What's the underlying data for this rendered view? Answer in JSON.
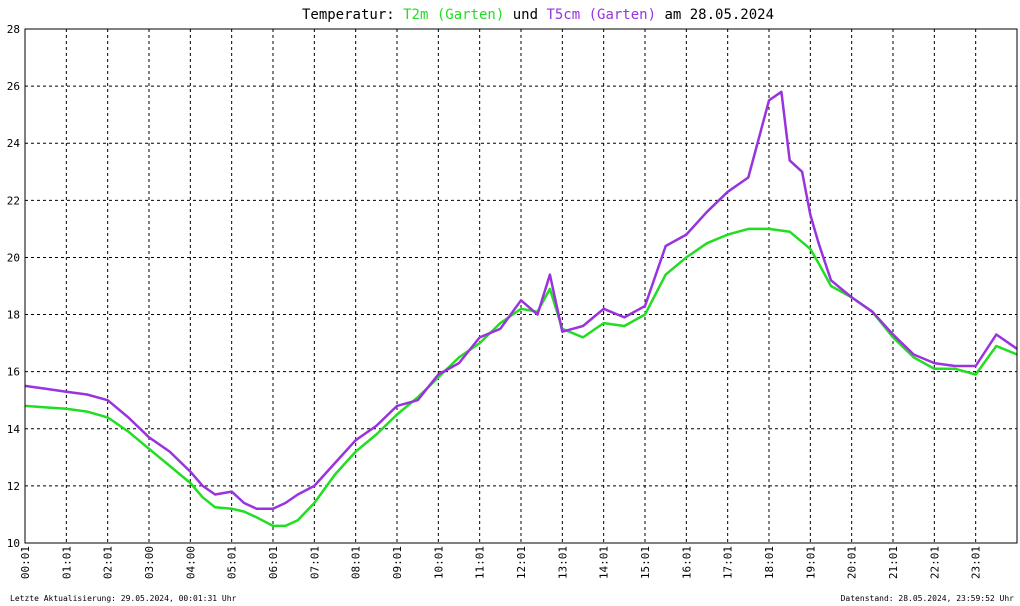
{
  "chart_data": {
    "type": "line",
    "title_parts": [
      {
        "text": "Temperatur: ",
        "color": "#000000"
      },
      {
        "text": "T2m (Garten)",
        "color": "#22dd22"
      },
      {
        "text": " und ",
        "color": "#000000"
      },
      {
        "text": "T5cm (Garten)",
        "color": "#9933dd"
      },
      {
        "text": " am 28.05.2024",
        "color": "#000000"
      }
    ],
    "xlim": [
      0,
      24
    ],
    "ylim": [
      10,
      28
    ],
    "y_ticks": [
      10,
      12,
      14,
      16,
      18,
      20,
      22,
      24,
      26,
      28
    ],
    "x_ticks": [
      "00:01",
      "01:01",
      "02:01",
      "03:00",
      "04:00",
      "05:01",
      "06:01",
      "07:01",
      "08:01",
      "09:01",
      "10:01",
      "11:01",
      "12:01",
      "13:01",
      "14:01",
      "15:01",
      "16:01",
      "17:01",
      "18:01",
      "19:01",
      "20:01",
      "21:01",
      "22:01",
      "23:01"
    ],
    "grid": true,
    "series": [
      {
        "name": "T2m (Garten)",
        "color": "#22dd22",
        "x": [
          0,
          0.5,
          1,
          1.5,
          2,
          2.5,
          3,
          3.5,
          4,
          4.3,
          4.6,
          5,
          5.3,
          5.6,
          6,
          6.3,
          6.6,
          7,
          7.5,
          8,
          8.5,
          9,
          9.5,
          10,
          10.5,
          11,
          11.5,
          12,
          12.4,
          12.7,
          13,
          13.5,
          14,
          14.5,
          15,
          15.5,
          16,
          16.5,
          17,
          17.5,
          18,
          18.5,
          19,
          19.2,
          19.5,
          20,
          20.5,
          21,
          21.5,
          22,
          22.5,
          23,
          23.5,
          24
        ],
        "values": [
          14.8,
          14.75,
          14.7,
          14.6,
          14.4,
          13.9,
          13.3,
          12.7,
          12.1,
          11.6,
          11.25,
          11.2,
          11.1,
          10.9,
          10.6,
          10.6,
          10.8,
          11.4,
          12.4,
          13.2,
          13.8,
          14.5,
          15.1,
          15.8,
          16.5,
          17.0,
          17.7,
          18.2,
          18.1,
          18.9,
          17.5,
          17.2,
          17.7,
          17.6,
          18.0,
          19.4,
          20.0,
          20.5,
          20.8,
          21.0,
          21.0,
          20.9,
          20.3,
          19.8,
          19.0,
          18.6,
          18.1,
          17.2,
          16.5,
          16.1,
          16.1,
          15.9,
          16.9,
          16.6
        ]
      },
      {
        "name": "T5cm (Garten)",
        "color": "#9933dd",
        "x": [
          0,
          0.5,
          1,
          1.5,
          2,
          2.5,
          3,
          3.5,
          4,
          4.3,
          4.6,
          5,
          5.3,
          5.6,
          6,
          6.3,
          6.6,
          7,
          7.5,
          8,
          8.5,
          9,
          9.5,
          10,
          10.5,
          11,
          11.5,
          12,
          12.4,
          12.7,
          13,
          13.5,
          14,
          14.5,
          15,
          15.5,
          16,
          16.5,
          17,
          17.5,
          18,
          18.3,
          18.5,
          18.8,
          19,
          19.2,
          19.5,
          20,
          20.5,
          21,
          21.5,
          22,
          22.5,
          23,
          23.5,
          24
        ],
        "values": [
          15.5,
          15.4,
          15.3,
          15.2,
          15.0,
          14.4,
          13.7,
          13.2,
          12.5,
          12.0,
          11.7,
          11.8,
          11.4,
          11.2,
          11.2,
          11.4,
          11.7,
          12.0,
          12.8,
          13.6,
          14.1,
          14.8,
          15.0,
          15.9,
          16.3,
          17.2,
          17.5,
          18.5,
          18.0,
          19.4,
          17.4,
          17.6,
          18.2,
          17.9,
          18.3,
          20.4,
          20.8,
          21.6,
          22.3,
          22.8,
          25.5,
          25.8,
          23.4,
          23.0,
          21.5,
          20.5,
          19.2,
          18.6,
          18.1,
          17.3,
          16.6,
          16.3,
          16.2,
          16.2,
          17.3,
          16.8
        ]
      }
    ]
  },
  "footer": {
    "left": "Letzte Aktualisierung: 29.05.2024, 00:01:31 Uhr",
    "right": "Datenstand: 28.05.2024, 23:59:52 Uhr"
  }
}
